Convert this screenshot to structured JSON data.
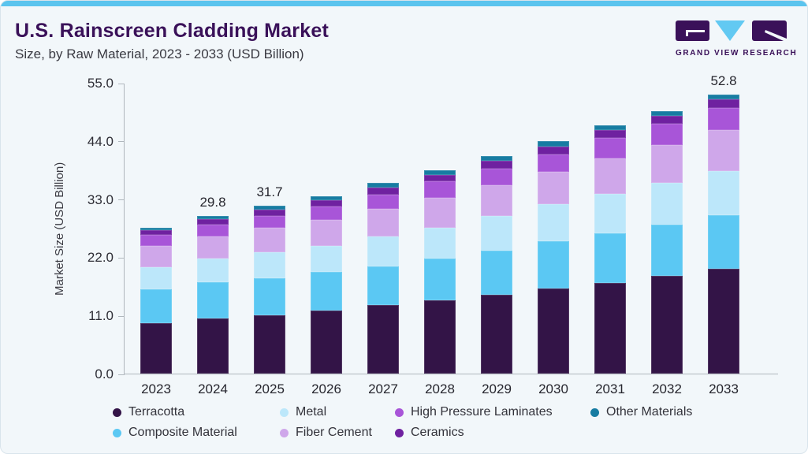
{
  "header": {
    "title": "U.S. Rainscreen Cladding Market",
    "subtitle": "Size, by Raw Material, 2023 - 2033 (USD Billion)"
  },
  "logo": {
    "text": "GRAND VIEW RESEARCH"
  },
  "theme": {
    "background": "#F2F7FA",
    "top_bar": "#5BC4EE",
    "title": "#3A1159",
    "text": "#3A3A42",
    "axis": "#B0B7BD"
  },
  "chart_data": {
    "type": "bar",
    "stacked": true,
    "title": "U.S. Rainscreen Cladding Market Size, by Raw Material, 2023 - 2033 (USD Billion)",
    "ylabel": "Market Size (USD Billion)",
    "xlabel": "",
    "ylim": [
      0,
      55
    ],
    "ytick_labels": [
      "0.0",
      "11.0",
      "22.0",
      "33.0",
      "44.0",
      "55.0"
    ],
    "grid": false,
    "legend_position": "bottom",
    "categories": [
      "2023",
      "2024",
      "2025",
      "2026",
      "2027",
      "2028",
      "2029",
      "2030",
      "2031",
      "2032",
      "2033"
    ],
    "series": [
      {
        "name": "Terracotta",
        "color": "#331447",
        "values": [
          9.6,
          10.4,
          11.1,
          11.9,
          12.9,
          13.8,
          14.9,
          16.1,
          17.2,
          18.5,
          19.9
        ]
      },
      {
        "name": "Composite Material",
        "color": "#5BC8F3",
        "values": [
          6.3,
          6.9,
          7.0,
          7.3,
          7.4,
          7.9,
          8.3,
          9.0,
          9.4,
          9.7,
          10.0
        ]
      },
      {
        "name": "Metal",
        "color": "#BCE7FA",
        "values": [
          4.2,
          4.4,
          4.8,
          5.0,
          5.6,
          5.9,
          6.6,
          6.9,
          7.4,
          7.9,
          8.4
        ]
      },
      {
        "name": "Fiber Cement",
        "color": "#CFA7EA",
        "values": [
          4.1,
          4.3,
          4.7,
          4.9,
          5.3,
          5.7,
          5.9,
          6.1,
          6.7,
          7.1,
          7.7
        ]
      },
      {
        "name": "High Pressure Laminates",
        "color": "#A855D8",
        "values": [
          2.0,
          2.2,
          2.2,
          2.5,
          2.7,
          3.0,
          3.1,
          3.3,
          3.9,
          4.1,
          4.3
        ]
      },
      {
        "name": "Ceramics",
        "color": "#6F21A0",
        "values": [
          0.9,
          1.0,
          1.2,
          1.2,
          1.3,
          1.3,
          1.4,
          1.6,
          1.5,
          1.5,
          1.6
        ]
      },
      {
        "name": "Other Materials",
        "color": "#177CA2",
        "values": [
          0.5,
          0.6,
          0.7,
          0.8,
          0.8,
          0.8,
          0.9,
          0.9,
          0.8,
          0.9,
          0.9
        ]
      }
    ],
    "total_labels": [
      "",
      "29.8",
      "31.7",
      "",
      "",
      "",
      "",
      "",
      "",
      "",
      "52.8"
    ]
  }
}
